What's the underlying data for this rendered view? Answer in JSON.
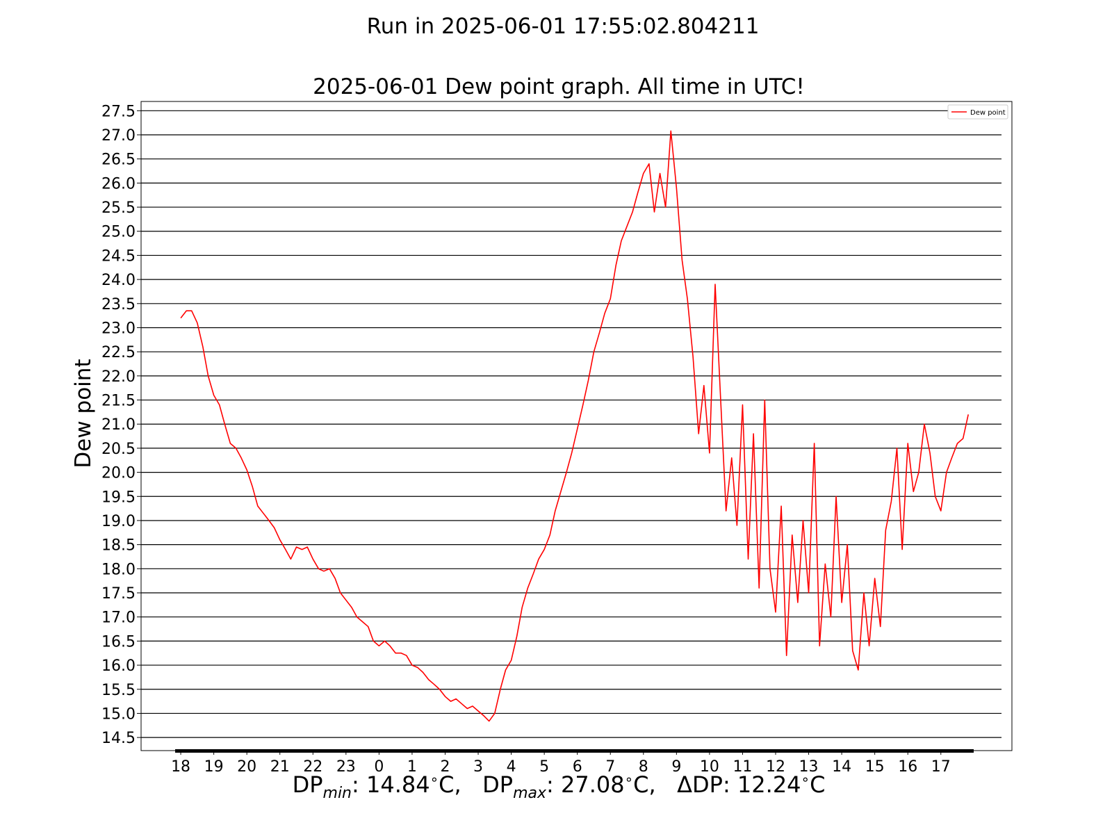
{
  "chart_data": {
    "type": "line",
    "suptitle": "Run in 2025-06-01 17:55:02.804211",
    "title": "2025-06-01 Dew point graph. All time in UTC!",
    "ylabel": "Dew point",
    "xlabel": [
      "DP",
      "min",
      ": 14.84",
      "∘",
      "C,   DP",
      "max",
      ": 27.08",
      "∘",
      "C,   ΔDP: 12.24",
      "∘",
      "C"
    ],
    "x": [
      0,
      0.17,
      0.33,
      0.5,
      0.67,
      0.83,
      1,
      1.17,
      1.33,
      1.5,
      1.67,
      1.83,
      2,
      2.17,
      2.33,
      2.5,
      2.67,
      2.83,
      3,
      3.17,
      3.33,
      3.5,
      3.67,
      3.83,
      4,
      4.17,
      4.33,
      4.5,
      4.67,
      4.83,
      5,
      5.17,
      5.33,
      5.5,
      5.67,
      5.83,
      6,
      6.17,
      6.33,
      6.5,
      6.67,
      6.83,
      7,
      7.17,
      7.33,
      7.5,
      7.67,
      7.83,
      8,
      8.17,
      8.33,
      8.5,
      8.67,
      8.83,
      9,
      9.17,
      9.33,
      9.5,
      9.67,
      9.83,
      10,
      10.17,
      10.33,
      10.5,
      10.67,
      10.83,
      11,
      11.17,
      11.33,
      11.5,
      11.67,
      11.83,
      12,
      12.17,
      12.33,
      12.5,
      12.67,
      12.83,
      13,
      13.17,
      13.33,
      13.5,
      13.67,
      13.83,
      14,
      14.17,
      14.33,
      14.5,
      14.67,
      14.83,
      15,
      15.17,
      15.33,
      15.5,
      15.67,
      15.83,
      16,
      16.17,
      16.33,
      16.5,
      16.67,
      16.83,
      17,
      17.17,
      17.33,
      17.5,
      17.67,
      17.83,
      18,
      18.17,
      18.33,
      18.5,
      18.67,
      18.83,
      19,
      19.17,
      19.33,
      19.5,
      19.67,
      19.83,
      20,
      20.17,
      20.33,
      20.5,
      20.67,
      20.83,
      21,
      21.17,
      21.33,
      21.5,
      21.67,
      21.83,
      22,
      22.17,
      22.33,
      22.5,
      22.67,
      22.83,
      23,
      23.17,
      23.33,
      23.5,
      23.67,
      23.83
    ],
    "series": [
      {
        "name": "Dew point",
        "color": "#ff0000",
        "values": [
          23.2,
          23.35,
          23.35,
          23.1,
          22.6,
          22.0,
          21.6,
          21.4,
          21.0,
          20.6,
          20.5,
          20.3,
          20.05,
          19.7,
          19.3,
          19.15,
          19.0,
          18.85,
          18.6,
          18.4,
          18.2,
          18.45,
          18.4,
          18.45,
          18.2,
          18.0,
          17.95,
          18.0,
          17.8,
          17.5,
          17.35,
          17.2,
          17.0,
          16.9,
          16.8,
          16.5,
          16.4,
          16.5,
          16.4,
          16.25,
          16.25,
          16.2,
          16.0,
          15.95,
          15.85,
          15.7,
          15.6,
          15.5,
          15.35,
          15.25,
          15.3,
          15.2,
          15.1,
          15.15,
          15.05,
          14.95,
          14.84,
          15.0,
          15.5,
          15.9,
          16.1,
          16.6,
          17.2,
          17.6,
          17.9,
          18.2,
          18.4,
          18.7,
          19.2,
          19.6,
          20.0,
          20.4,
          20.9,
          21.4,
          21.9,
          22.5,
          22.9,
          23.3,
          23.6,
          24.3,
          24.8,
          25.1,
          25.4,
          25.8,
          26.2,
          26.4,
          25.4,
          26.2,
          25.5,
          27.08,
          25.9,
          24.4,
          23.6,
          22.4,
          20.8,
          21.8,
          20.4,
          23.9,
          21.6,
          19.2,
          20.3,
          18.9,
          21.4,
          18.2,
          20.8,
          17.6,
          21.5,
          18.0,
          17.1,
          19.3,
          16.2,
          18.7,
          17.3,
          19.0,
          17.5,
          20.6,
          16.4,
          18.1,
          17.0,
          19.5,
          17.3,
          18.5,
          16.3,
          15.9,
          17.5,
          16.4,
          17.8,
          16.8,
          18.8,
          19.4,
          20.5,
          18.4,
          20.6,
          19.6,
          20.0,
          21.0,
          20.4,
          19.5,
          19.2,
          20.0,
          20.3,
          20.6,
          20.7,
          21.2
        ]
      }
    ],
    "xlim": [
      -1.2,
      25.15
    ],
    "xticks": [
      {
        "value": 0,
        "label": "18"
      },
      {
        "value": 1,
        "label": "19"
      },
      {
        "value": 2,
        "label": "20"
      },
      {
        "value": 3,
        "label": "21"
      },
      {
        "value": 4,
        "label": "22"
      },
      {
        "value": 5,
        "label": "23"
      },
      {
        "value": 6,
        "label": "0"
      },
      {
        "value": 7,
        "label": "1"
      },
      {
        "value": 8,
        "label": "2"
      },
      {
        "value": 9,
        "label": "3"
      },
      {
        "value": 10,
        "label": "4"
      },
      {
        "value": 11,
        "label": "5"
      },
      {
        "value": 12,
        "label": "6"
      },
      {
        "value": 13,
        "label": "7"
      },
      {
        "value": 14,
        "label": "8"
      },
      {
        "value": 15,
        "label": "9"
      },
      {
        "value": 16,
        "label": "10"
      },
      {
        "value": 17,
        "label": "11"
      },
      {
        "value": 18,
        "label": "12"
      },
      {
        "value": 19,
        "label": "13"
      },
      {
        "value": 20,
        "label": "14"
      },
      {
        "value": 21,
        "label": "15"
      },
      {
        "value": 22,
        "label": "16"
      },
      {
        "value": 23,
        "label": "17"
      }
    ],
    "ylim": [
      14.228,
      27.692
    ],
    "yticks": [
      14.5,
      {
        "value": 15,
        "label": "15.0"
      },
      15.5,
      {
        "value": 16,
        "label": "16.0"
      },
      16.5,
      {
        "value": 17,
        "label": "17.0"
      },
      17.5,
      {
        "value": 18,
        "label": "18.0"
      },
      18.5,
      {
        "value": 19,
        "label": "19.0"
      },
      19.5,
      {
        "value": 20,
        "label": "20.0"
      },
      20.5,
      {
        "value": 21,
        "label": "21.0"
      },
      21.5,
      {
        "value": 22,
        "label": "22.0"
      },
      22.5,
      {
        "value": 23,
        "label": "23.0"
      },
      23.5,
      {
        "value": 24,
        "label": "24.0"
      },
      24.5,
      {
        "value": 25,
        "label": "25.0"
      },
      25.5,
      {
        "value": 26,
        "label": "26.0"
      },
      26.5,
      {
        "value": 27,
        "label": "27.0"
      },
      27.5
    ],
    "grid": true,
    "legend": "upper right"
  }
}
